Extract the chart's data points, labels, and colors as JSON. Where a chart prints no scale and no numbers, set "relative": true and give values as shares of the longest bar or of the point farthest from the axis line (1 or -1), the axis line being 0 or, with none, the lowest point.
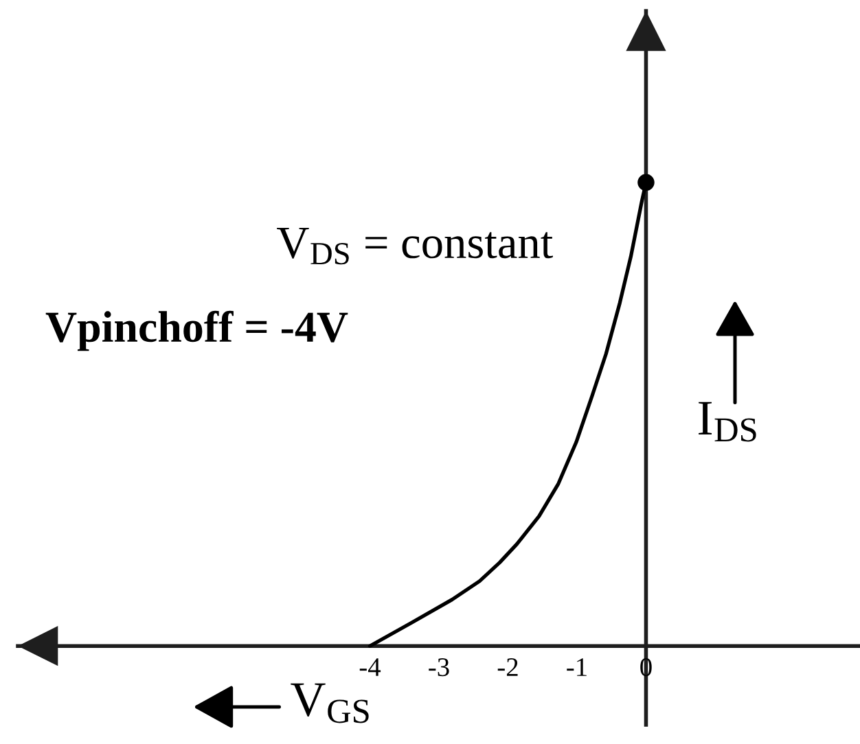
{
  "chart_data": {
    "type": "line",
    "relative": true,
    "xlabel": "V$_{GS}$",
    "ylabel": "I$_{DS}$",
    "xlim": [
      -9.1,
      3.1
    ],
    "xticks": [
      -4,
      -3,
      -2,
      -1,
      0
    ],
    "tick_labels": "x",
    "annotations": [
      "V$_{DS}$ = constant",
      "Vpinchoff = -4V"
    ],
    "series": [
      {
        "color": "#000000",
        "line_style": "solid",
        "x": [
          -4,
          -3.4,
          -2.81,
          -2.41,
          -2.12,
          -1.87,
          -1.55,
          -1.27,
          -1.01,
          -0.78,
          -0.58,
          -0.38,
          -0.22,
          -0.06,
          0
        ],
        "values": [
          0,
          0.05,
          0.1,
          0.14,
          0.18,
          0.22,
          0.28,
          0.35,
          0.44,
          0.54,
          0.63,
          0.74,
          0.84,
          0.96,
          1
        ]
      },
      {
        "type": "scatter",
        "color": "#000000",
        "marker": "circle",
        "x": [
          0
        ],
        "values": [
          1
        ]
      }
    ]
  }
}
